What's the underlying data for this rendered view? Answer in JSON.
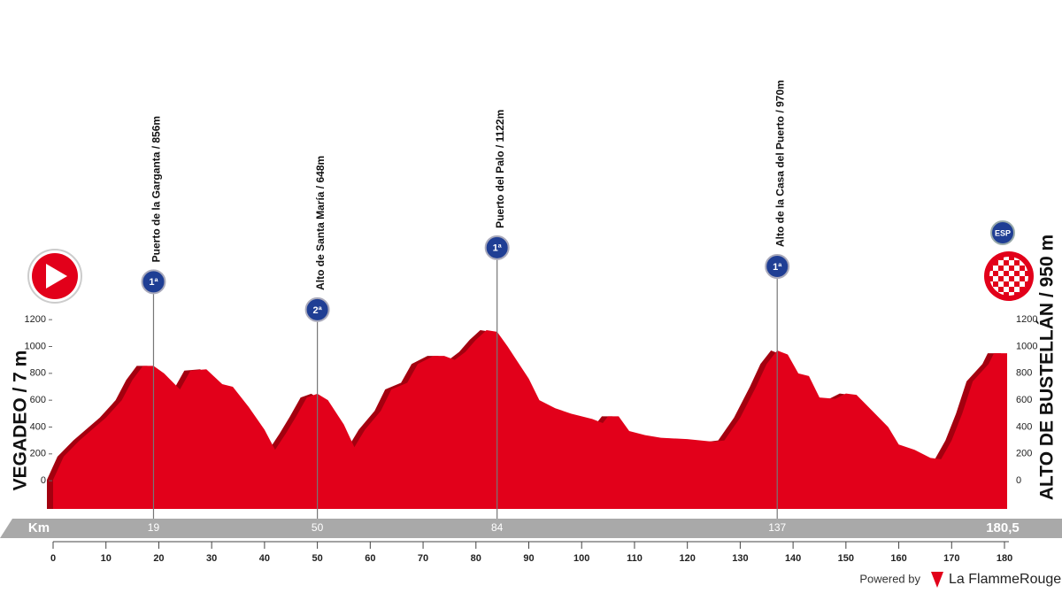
{
  "start": {
    "label": "VEGADEO / 7 m"
  },
  "finish": {
    "label": "ALTO DE BUSTELLÁN / 950 m",
    "badge": "ESP"
  },
  "chart_data": {
    "type": "area",
    "x": [
      0,
      2,
      5,
      10,
      13,
      15,
      17,
      19,
      21,
      24,
      26,
      29,
      32,
      34,
      37,
      40,
      42,
      44,
      46,
      48,
      50,
      52,
      55,
      57,
      59,
      62,
      64,
      67,
      69,
      72,
      74,
      76,
      78,
      80,
      82,
      84,
      86,
      88,
      90,
      92,
      95,
      98,
      102,
      104,
      105,
      107,
      109,
      112,
      115,
      120,
      125,
      127,
      130,
      133,
      135,
      137,
      139,
      141,
      143,
      145,
      148,
      150,
      152,
      155,
      158,
      160,
      163,
      166,
      168,
      170,
      172,
      174,
      177,
      178,
      180.5
    ],
    "values": [
      7,
      180,
      300,
      470,
      600,
      750,
      856,
      856,
      800,
      680,
      820,
      830,
      720,
      700,
      550,
      380,
      230,
      350,
      480,
      620,
      648,
      600,
      420,
      250,
      380,
      520,
      680,
      730,
      870,
      930,
      930,
      900,
      960,
      1050,
      1122,
      1110,
      1000,
      880,
      760,
      600,
      540,
      500,
      460,
      430,
      480,
      480,
      370,
      340,
      320,
      310,
      290,
      300,
      470,
      700,
      870,
      970,
      940,
      800,
      780,
      620,
      610,
      650,
      640,
      520,
      400,
      270,
      230,
      170,
      160,
      300,
      500,
      740,
      870,
      950,
      950
    ],
    "color": "#e2001a",
    "xlim": [
      0,
      180.5
    ],
    "ylim": [
      -210,
      1300
    ],
    "xticks": [
      0,
      10,
      20,
      30,
      40,
      50,
      60,
      70,
      80,
      90,
      100,
      110,
      120,
      130,
      140,
      150,
      160,
      170,
      180
    ],
    "yticks": [
      0,
      200,
      400,
      600,
      800,
      1000,
      1200
    ],
    "km_label": "Km",
    "finish_km": {
      "value": 180.5,
      "label": "180,5"
    },
    "climbs": [
      {
        "km": 19,
        "name": "Puerto de la Garganta / 856m",
        "category": "1ª"
      },
      {
        "km": 50,
        "name": "Alto de Santa María / 648m",
        "category": "2ª"
      },
      {
        "km": 84,
        "name": "Puerto del Palo / 1122m",
        "category": "1ª"
      },
      {
        "km": 137,
        "name": "Alto de la Casa del Puerto / 970m",
        "category": "1ª"
      }
    ]
  },
  "footer": {
    "powered": "Powered by",
    "brand": "La FlammeRouge"
  }
}
